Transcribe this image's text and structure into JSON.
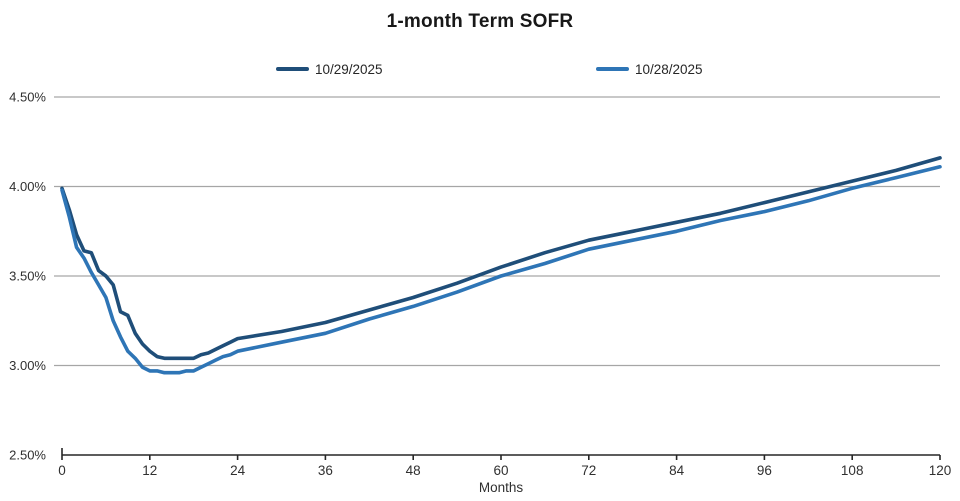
{
  "chart_data": {
    "type": "line",
    "title": "1-month Term SOFR",
    "legend_position": "top",
    "grid": true,
    "x_axis": {
      "label": "Months",
      "min": 0,
      "max": 120,
      "ticks": [
        0,
        12,
        24,
        36,
        48,
        60,
        72,
        84,
        96,
        108,
        120
      ]
    },
    "y_axis": {
      "min": 2.5,
      "max": 4.5,
      "tick_values": [
        4.5,
        4.0,
        3.5,
        3.0,
        2.5
      ],
      "tick_labels": [
        "4.50%",
        "4.00%",
        "3.50%",
        "3.00%",
        "2.50%"
      ],
      "format": "percent"
    },
    "x": [
      0,
      1,
      2,
      3,
      4,
      5,
      6,
      7,
      8,
      9,
      10,
      11,
      12,
      13,
      14,
      15,
      16,
      17,
      18,
      19,
      20,
      21,
      22,
      23,
      24,
      30,
      36,
      42,
      48,
      54,
      60,
      66,
      72,
      78,
      84,
      90,
      96,
      102,
      108,
      114,
      120
    ],
    "series": [
      {
        "name": "10/29/2025",
        "color": "#1F4E79",
        "values": [
          3.99,
          3.87,
          3.73,
          3.64,
          3.63,
          3.53,
          3.5,
          3.45,
          3.3,
          3.28,
          3.18,
          3.12,
          3.08,
          3.05,
          3.04,
          3.04,
          3.04,
          3.04,
          3.04,
          3.06,
          3.07,
          3.09,
          3.11,
          3.13,
          3.15,
          3.19,
          3.24,
          3.31,
          3.38,
          3.46,
          3.55,
          3.63,
          3.7,
          3.75,
          3.8,
          3.85,
          3.91,
          3.97,
          4.03,
          4.09,
          4.16
        ]
      },
      {
        "name": "10/28/2025",
        "color": "#2E75B6",
        "values": [
          3.98,
          3.83,
          3.66,
          3.6,
          3.52,
          3.45,
          3.38,
          3.25,
          3.16,
          3.08,
          3.04,
          2.99,
          2.97,
          2.97,
          2.96,
          2.96,
          2.96,
          2.97,
          2.97,
          2.99,
          3.01,
          3.03,
          3.05,
          3.06,
          3.08,
          3.13,
          3.18,
          3.26,
          3.33,
          3.41,
          3.5,
          3.57,
          3.65,
          3.7,
          3.75,
          3.81,
          3.86,
          3.92,
          3.99,
          4.05,
          4.11
        ]
      }
    ],
    "colors": {
      "gridline": "#A6A6A6",
      "axis": "#262626",
      "text": "#303030",
      "title": "#181818"
    }
  }
}
